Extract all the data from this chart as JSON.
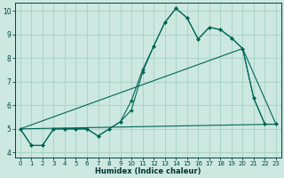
{
  "xlabel": "Humidex (Indice chaleur)",
  "bg_color": "#cce8e0",
  "grid_color": "#aad4c8",
  "line_color": "#006655",
  "xlim": [
    -0.5,
    23.5
  ],
  "ylim": [
    3.8,
    10.35
  ],
  "xticks": [
    0,
    1,
    2,
    3,
    4,
    5,
    6,
    7,
    8,
    9,
    10,
    11,
    12,
    13,
    14,
    15,
    16,
    17,
    18,
    19,
    20,
    21,
    22,
    23
  ],
  "yticks": [
    4,
    5,
    6,
    7,
    8,
    9,
    10
  ],
  "curve1_x": [
    0,
    1,
    2,
    3,
    4,
    5,
    6,
    7,
    8,
    9,
    10,
    11,
    12,
    13,
    14,
    15,
    16,
    17,
    18,
    19,
    20,
    21,
    22,
    23
  ],
  "curve1_y": [
    5.0,
    4.3,
    4.3,
    5.0,
    5.0,
    5.0,
    5.0,
    4.7,
    5.0,
    5.3,
    5.8,
    7.4,
    8.5,
    9.5,
    10.1,
    9.7,
    8.8,
    9.3,
    9.2,
    8.85,
    8.4,
    6.3,
    5.2,
    5.2
  ],
  "curve2_x": [
    0,
    1,
    2,
    3,
    4,
    5,
    6,
    7,
    8,
    9,
    10,
    11,
    12,
    13,
    14,
    15,
    16,
    17,
    18,
    19,
    20,
    21,
    22,
    23
  ],
  "curve2_y": [
    5.0,
    4.3,
    4.3,
    5.0,
    5.0,
    5.0,
    5.0,
    4.7,
    5.0,
    5.3,
    6.2,
    7.5,
    8.5,
    9.5,
    10.1,
    9.7,
    8.8,
    9.3,
    9.2,
    8.85,
    8.4,
    6.3,
    5.2,
    5.2
  ],
  "trend1_x": [
    0,
    20,
    23
  ],
  "trend1_y": [
    5.0,
    8.4,
    5.2
  ],
  "trend2_x": [
    0,
    23
  ],
  "trend2_y": [
    5.0,
    5.2
  ],
  "xlabel_fontsize": 6.0,
  "tick_fontsize_x": 5.0,
  "tick_fontsize_y": 5.5
}
